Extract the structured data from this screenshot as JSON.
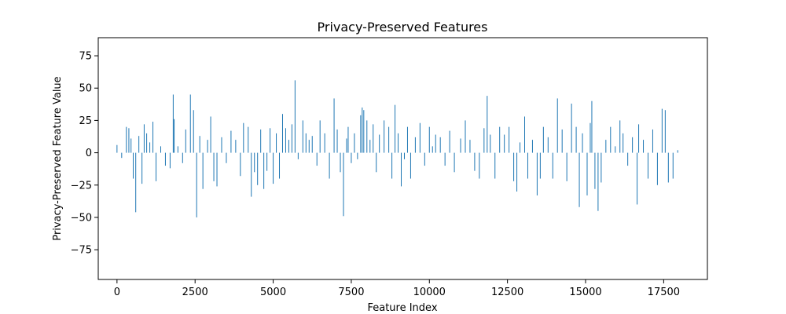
{
  "chart_data": {
    "type": "bar",
    "title": "Privacy-Preserved Features",
    "xlabel": "Feature Index",
    "ylabel": "Privacy-Preserved Feature Value",
    "xlim": [
      -600,
      18900
    ],
    "ylim": [
      -98,
      89
    ],
    "xticks": [
      0,
      2500,
      5000,
      7500,
      10000,
      12500,
      15000,
      17500
    ],
    "yticks": [
      -75,
      -50,
      -25,
      0,
      25,
      50,
      75
    ],
    "xtick_labels": [
      "0",
      "2500",
      "5000",
      "7500",
      "10000",
      "12500",
      "15000",
      "17500"
    ],
    "ytick_labels": [
      "−75",
      "−50",
      "−25",
      "0",
      "25",
      "50",
      "75"
    ],
    "grid": false,
    "bar_color": "#1f77b4",
    "bars": [
      [
        0,
        6
      ],
      [
        150,
        -4
      ],
      [
        300,
        20
      ],
      [
        380,
        19
      ],
      [
        450,
        11
      ],
      [
        520,
        -20
      ],
      [
        600,
        -46
      ],
      [
        700,
        13
      ],
      [
        800,
        -24
      ],
      [
        870,
        22
      ],
      [
        950,
        15
      ],
      [
        1050,
        8
      ],
      [
        1150,
        24
      ],
      [
        1250,
        -22
      ],
      [
        1400,
        5
      ],
      [
        1550,
        -10
      ],
      [
        1700,
        -12
      ],
      [
        1800,
        45
      ],
      [
        1830,
        26
      ],
      [
        1950,
        5
      ],
      [
        2100,
        -8
      ],
      [
        2200,
        18
      ],
      [
        2350,
        45
      ],
      [
        2450,
        33
      ],
      [
        2550,
        -50
      ],
      [
        2650,
        13
      ],
      [
        2750,
        -28
      ],
      [
        2900,
        10
      ],
      [
        3000,
        28
      ],
      [
        3100,
        -22
      ],
      [
        3200,
        -26
      ],
      [
        3350,
        12
      ],
      [
        3500,
        -8
      ],
      [
        3650,
        17
      ],
      [
        3800,
        10
      ],
      [
        3950,
        -18
      ],
      [
        4050,
        23
      ],
      [
        4200,
        20
      ],
      [
        4300,
        -34
      ],
      [
        4400,
        -15
      ],
      [
        4500,
        -25
      ],
      [
        4600,
        18
      ],
      [
        4700,
        -28
      ],
      [
        4800,
        -14
      ],
      [
        4900,
        19
      ],
      [
        5000,
        -24
      ],
      [
        5100,
        15
      ],
      [
        5200,
        -20
      ],
      [
        5300,
        30
      ],
      [
        5400,
        19
      ],
      [
        5500,
        10
      ],
      [
        5600,
        22
      ],
      [
        5700,
        56
      ],
      [
        5800,
        -5
      ],
      [
        5950,
        25
      ],
      [
        6050,
        15
      ],
      [
        6150,
        10
      ],
      [
        6250,
        13
      ],
      [
        6400,
        -10
      ],
      [
        6500,
        25
      ],
      [
        6650,
        15
      ],
      [
        6800,
        -20
      ],
      [
        6950,
        42
      ],
      [
        7050,
        18
      ],
      [
        7150,
        -15
      ],
      [
        7250,
        -49
      ],
      [
        7350,
        11
      ],
      [
        7400,
        20
      ],
      [
        7500,
        -8
      ],
      [
        7600,
        15
      ],
      [
        7700,
        -5
      ],
      [
        7800,
        29
      ],
      [
        7850,
        35
      ],
      [
        7900,
        33
      ],
      [
        8000,
        25
      ],
      [
        8100,
        10
      ],
      [
        8200,
        22
      ],
      [
        8300,
        -15
      ],
      [
        8400,
        14
      ],
      [
        8550,
        25
      ],
      [
        8700,
        20
      ],
      [
        8800,
        -20
      ],
      [
        8900,
        37
      ],
      [
        9000,
        15
      ],
      [
        9100,
        -26
      ],
      [
        9200,
        -5
      ],
      [
        9300,
        20
      ],
      [
        9400,
        -20
      ],
      [
        9550,
        12
      ],
      [
        9700,
        23
      ],
      [
        9850,
        -10
      ],
      [
        10000,
        20
      ],
      [
        10100,
        5
      ],
      [
        10200,
        14
      ],
      [
        10350,
        12
      ],
      [
        10500,
        -10
      ],
      [
        10650,
        17
      ],
      [
        10800,
        -15
      ],
      [
        11000,
        11
      ],
      [
        11150,
        25
      ],
      [
        11300,
        10
      ],
      [
        11450,
        -14
      ],
      [
        11600,
        -20
      ],
      [
        11750,
        19
      ],
      [
        11850,
        44
      ],
      [
        11950,
        14
      ],
      [
        12100,
        -20
      ],
      [
        12250,
        20
      ],
      [
        12400,
        14
      ],
      [
        12550,
        20
      ],
      [
        12700,
        -22
      ],
      [
        12800,
        -30
      ],
      [
        12900,
        8
      ],
      [
        13050,
        28
      ],
      [
        13150,
        -20
      ],
      [
        13300,
        10
      ],
      [
        13450,
        -33
      ],
      [
        13550,
        -20
      ],
      [
        13650,
        20
      ],
      [
        13800,
        12
      ],
      [
        13950,
        -20
      ],
      [
        14100,
        42
      ],
      [
        14250,
        18
      ],
      [
        14400,
        -22
      ],
      [
        14550,
        38
      ],
      [
        14700,
        20
      ],
      [
        14800,
        -42
      ],
      [
        14900,
        15
      ],
      [
        15050,
        -33
      ],
      [
        15150,
        23
      ],
      [
        15200,
        40
      ],
      [
        15300,
        -28
      ],
      [
        15400,
        -45
      ],
      [
        15500,
        -23
      ],
      [
        15650,
        10
      ],
      [
        15800,
        20
      ],
      [
        15950,
        5
      ],
      [
        16100,
        25
      ],
      [
        16200,
        15
      ],
      [
        16350,
        -10
      ],
      [
        16500,
        12
      ],
      [
        16650,
        -40
      ],
      [
        16700,
        22
      ],
      [
        16850,
        10
      ],
      [
        17000,
        -20
      ],
      [
        17150,
        18
      ],
      [
        17300,
        -25
      ],
      [
        17450,
        34
      ],
      [
        17550,
        33
      ],
      [
        17650,
        -23
      ],
      [
        17800,
        -20
      ],
      [
        17950,
        2
      ]
    ]
  }
}
